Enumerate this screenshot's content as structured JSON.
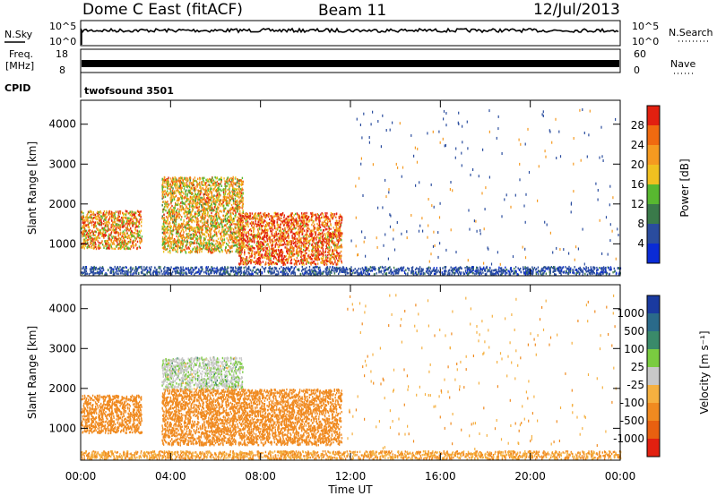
{
  "header": {
    "radar": "Dome C East (fitACF)",
    "beam": "Beam 11",
    "date": "12/Jul/2013"
  },
  "noise_panel": {
    "left_label": "N.Sky",
    "right_label": "N.Search",
    "tick_top": "10^5",
    "tick_bottom": "10^0"
  },
  "freq_panel": {
    "left_label_1": "Freq.",
    "left_label_2": "[MHz]",
    "right_label": "Nave",
    "left_ticks": [
      "18",
      "8"
    ],
    "right_ticks": [
      "60",
      "0"
    ]
  },
  "cpid": {
    "label": "CPID",
    "value": "twofsound 3501"
  },
  "colors": {
    "power_scale": [
      "#0a2bd6",
      "#2a4c9e",
      "#3a7a4a",
      "#58b830",
      "#f0c020",
      "#f59a20",
      "#f06a10",
      "#e22010"
    ],
    "velocity_scale": [
      "#1a3aa0",
      "#2a6a8a",
      "#3a8a6a",
      "#7acc40",
      "#c8c8c8",
      "#f5b040",
      "#f08a20",
      "#e86010",
      "#e22010"
    ]
  },
  "chart_data": [
    {
      "type": "heatmap",
      "panel": "power",
      "ylabel": "Slant Range [km]",
      "yticks": [
        "1000",
        "2000",
        "3000",
        "4000"
      ],
      "ylim": [
        200,
        4600
      ],
      "xlim": [
        0,
        24
      ],
      "colorbar_label": "Power [dB]",
      "colorbar_ticks": [
        "4",
        "8",
        "12",
        "16",
        "20",
        "24",
        "28"
      ],
      "colorbar_range": [
        0,
        32
      ],
      "scatter_regions": [
        {
          "t0": 0.0,
          "t1": 2.7,
          "r0": 900,
          "r1": 1850,
          "value": 22
        },
        {
          "t0": 3.6,
          "t1": 7.2,
          "r0": 800,
          "r1": 2700,
          "value": 20
        },
        {
          "t0": 7.0,
          "t1": 11.6,
          "r0": 500,
          "r1": 1800,
          "value": 27
        },
        {
          "t0": 0.0,
          "t1": 24.0,
          "r0": 250,
          "r1": 450,
          "value": 6
        }
      ]
    },
    {
      "type": "heatmap",
      "panel": "velocity",
      "ylabel": "Slant Range [km]",
      "yticks": [
        "1000",
        "2000",
        "3000",
        "4000"
      ],
      "ylim": [
        200,
        4600
      ],
      "xlim": [
        0,
        24
      ],
      "xlabel": "Time UT",
      "xticks": [
        "00:00",
        "04:00",
        "08:00",
        "12:00",
        "16:00",
        "20:00",
        "00:00"
      ],
      "colorbar_label": "Velocity [m s⁻¹]",
      "colorbar_ticks": [
        "1000",
        "500",
        "100",
        "25",
        "-25",
        "-100",
        "-500",
        "-1000"
      ],
      "scatter_regions": [
        {
          "t0": 0.0,
          "t1": 2.7,
          "r0": 900,
          "r1": 1850,
          "value": -200
        },
        {
          "t0": 3.6,
          "t1": 7.2,
          "r0": 2000,
          "r1": 2800,
          "value": 0
        },
        {
          "t0": 3.6,
          "t1": 11.6,
          "r0": 600,
          "r1": 2000,
          "value": -200
        },
        {
          "t0": 0.0,
          "t1": 24.0,
          "r0": 250,
          "r1": 450,
          "value": -100
        }
      ]
    }
  ]
}
